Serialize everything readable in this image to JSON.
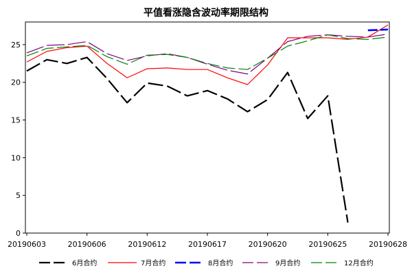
{
  "chart_data": {
    "type": "line",
    "title": "平值看涨隐含波动率期限结构",
    "x": [
      "20190603",
      "20190604",
      "20190605",
      "20190606",
      "20190610",
      "20190611",
      "20190612",
      "20190613",
      "20190614",
      "20190617",
      "20190618",
      "20190619",
      "20190620",
      "20190621",
      "20190624",
      "20190625",
      "20190626",
      "20190627",
      "20190628"
    ],
    "x_tick_labels": [
      "20190603",
      "20190606",
      "20190612",
      "20190617",
      "20190620",
      "20190625",
      "20190628"
    ],
    "x_tick_indices": [
      0,
      3,
      6,
      9,
      12,
      15,
      18
    ],
    "ylim": [
      0,
      28
    ],
    "y_ticks": [
      0,
      5,
      10,
      15,
      20,
      25
    ],
    "legend_position": "bottom",
    "series": [
      {
        "name": "6月合约",
        "color": "#000000",
        "values": [
          21.5,
          23.0,
          22.5,
          23.3,
          20.5,
          17.3,
          19.9,
          19.5,
          18.2,
          18.9,
          17.8,
          16.1,
          17.7,
          21.3,
          15.2,
          18.2,
          1.4,
          null,
          null
        ]
      },
      {
        "name": "7月合约",
        "color": "#ff0000",
        "values": [
          22.7,
          24.1,
          24.6,
          24.8,
          22.5,
          20.6,
          21.8,
          21.9,
          21.7,
          21.7,
          20.6,
          19.7,
          22.3,
          25.9,
          25.9,
          25.9,
          25.7,
          26.0,
          27.6
        ]
      },
      {
        "name": "8月合约",
        "color": "#0000ff",
        "values": [
          null,
          null,
          null,
          null,
          null,
          null,
          null,
          null,
          null,
          null,
          null,
          null,
          null,
          null,
          null,
          null,
          null,
          26.9,
          27.0
        ]
      },
      {
        "name": "9月合约",
        "color": "#800080",
        "values": [
          23.9,
          24.9,
          25.0,
          25.4,
          23.8,
          22.9,
          23.5,
          23.8,
          23.3,
          22.4,
          21.6,
          21.1,
          23.2,
          25.4,
          26.1,
          26.3,
          26.1,
          26.0,
          26.4
        ]
      },
      {
        "name": "12月合约",
        "color": "#008000",
        "values": [
          23.5,
          24.5,
          24.7,
          24.9,
          23.4,
          22.4,
          23.6,
          23.7,
          23.3,
          22.5,
          21.9,
          21.7,
          23.2,
          24.8,
          25.5,
          26.3,
          25.8,
          25.7,
          26.0
        ]
      }
    ]
  }
}
